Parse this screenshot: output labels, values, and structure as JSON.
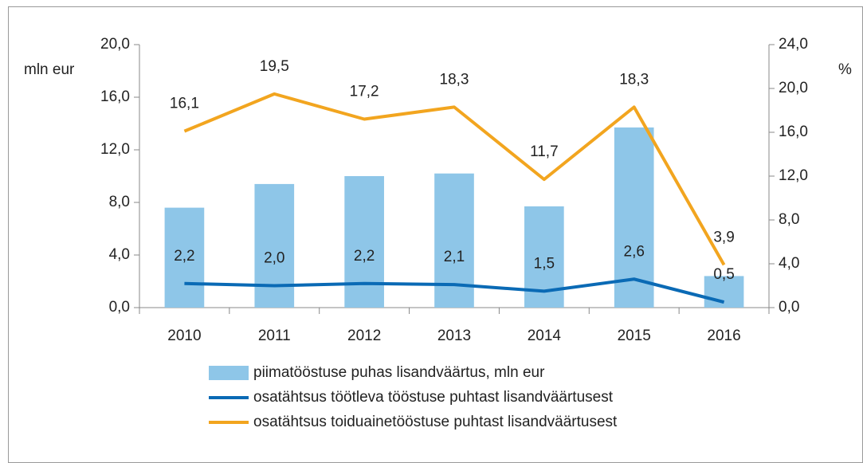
{
  "chart_data": {
    "type": "bar",
    "y_label": "mln eur",
    "y2_label": "%",
    "categories": [
      "2010",
      "2011",
      "2012",
      "2013",
      "2014",
      "2015",
      "2016"
    ],
    "series": [
      {
        "name": "piimatööstuse puhas lisandväärtus, mln eur",
        "type": "bar",
        "color": "#8ec6e8",
        "values": [
          7.6,
          9.4,
          10.0,
          10.2,
          7.7,
          13.7,
          2.4
        ]
      },
      {
        "name": "osatähtsus töötleva tööstuse puhtast lisandväärtusest",
        "type": "line",
        "axis": "y2",
        "color": "#0a6ab5",
        "values": [
          2.2,
          2.0,
          2.2,
          2.1,
          1.5,
          2.6,
          0.5
        ],
        "value_labels": [
          "2,2",
          "2,0",
          "2,2",
          "2,1",
          "1,5",
          "2,6",
          "0,5"
        ]
      },
      {
        "name": "osatähtsus toiduainetööstuse puhtast lisandväärtusest",
        "type": "line",
        "axis": "y2",
        "color": "#f2a51f",
        "values": [
          16.1,
          19.5,
          17.2,
          18.3,
          11.7,
          18.3,
          3.9
        ],
        "value_labels": [
          "16,1",
          "19,5",
          "17,2",
          "18,3",
          "11,7",
          "18,3",
          "3,9"
        ]
      }
    ],
    "ylim": [
      0,
      20
    ],
    "yticks": [
      {
        "value": 0,
        "label": "0,0"
      },
      {
        "value": 4,
        "label": "4,0"
      },
      {
        "value": 8,
        "label": "8,0"
      },
      {
        "value": 12,
        "label": "12,0"
      },
      {
        "value": 16,
        "label": "16,0"
      },
      {
        "value": 20,
        "label": "20,0"
      }
    ],
    "y2lim": [
      0,
      24
    ],
    "y2ticks": [
      {
        "value": 0,
        "label": "0,0"
      },
      {
        "value": 4,
        "label": "4,0"
      },
      {
        "value": 8,
        "label": "8,0"
      },
      {
        "value": 12,
        "label": "12,0"
      },
      {
        "value": 16,
        "label": "16,0"
      },
      {
        "value": 20,
        "label": "20,0"
      },
      {
        "value": 24,
        "label": "24,0"
      }
    ],
    "grid": false
  }
}
